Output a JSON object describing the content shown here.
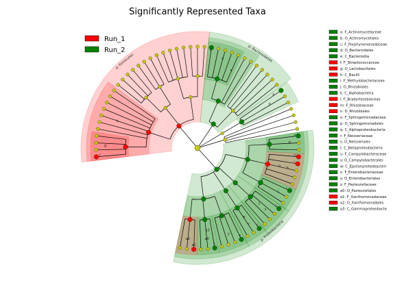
{
  "chart_data": {
    "type": "cladogram",
    "title": "Significantly Represented Taxa",
    "colors": {
      "Run_1": "#ff0000",
      "Run_2": "#008000",
      "neutral_node": "#c8c800",
      "edge": "#000000"
    },
    "legend": [
      {
        "name": "Run_1",
        "color": "#ff0000"
      },
      {
        "name": "Run_2",
        "color": "#008000"
      }
    ],
    "phylum_labels": [
      {
        "label": "p: Firmicutes",
        "group": "Run_1"
      },
      {
        "label": "p: Bacteroidetes",
        "group": "Run_2"
      },
      {
        "label": "p: Proteobacteria",
        "group": "Run_2"
      }
    ],
    "taxa": [
      {
        "letter": "a",
        "name": "F_Actinomycetaceae",
        "group": "Run_2"
      },
      {
        "letter": "b",
        "name": "O_Actinomycetales",
        "group": "Run_2"
      },
      {
        "letter": "c",
        "name": "F_Porphyromonadaceae",
        "group": "Run_2"
      },
      {
        "letter": "d",
        "name": "O_Bacteroidales",
        "group": "Run_2"
      },
      {
        "letter": "e",
        "name": "C_Bacteroidia",
        "group": "Run_2"
      },
      {
        "letter": "f",
        "name": "F_Streptococcaceae",
        "group": "Run_1"
      },
      {
        "letter": "g",
        "name": "O_Lactobacillales",
        "group": "Run_1"
      },
      {
        "letter": "h",
        "name": "C_Bacilli",
        "group": "Run_1"
      },
      {
        "letter": "i",
        "name": "F_Methylobacteriaceae",
        "group": "Run_2"
      },
      {
        "letter": "j",
        "name": "O_Rhizobiales",
        "group": "Run_2"
      },
      {
        "letter": "k",
        "name": "C_Alphabacteria",
        "group": "Run_2"
      },
      {
        "letter": "l",
        "name": "F_Bradyrhizobiaceae",
        "group": "Run_1"
      },
      {
        "letter": "m",
        "name": "F_Rhizobiaceae",
        "group": "Run_1"
      },
      {
        "letter": "n",
        "name": "O_Rhizobiales",
        "group": "Run_1"
      },
      {
        "letter": "o",
        "name": "F_Sphingomonadaceae",
        "group": "Run_2"
      },
      {
        "letter": "p",
        "name": "O_Sphingomonadales",
        "group": "Run_2"
      },
      {
        "letter": "q",
        "name": "C_Alphaproteobacteria",
        "group": "Run_2"
      },
      {
        "letter": "r",
        "name": "F_Neisseriaceae",
        "group": "Run_2"
      },
      {
        "letter": "s",
        "name": "O_Neisseriales",
        "group": "Run_2"
      },
      {
        "letter": "t",
        "name": "C_Betaproteobacteria",
        "group": "Run_2"
      },
      {
        "letter": "u",
        "name": "F_Campylobacteraceae",
        "group": "Run_2"
      },
      {
        "letter": "v",
        "name": "O_Campylobacterales",
        "group": "Run_2"
      },
      {
        "letter": "w",
        "name": "C_Epsilonproteobacteri",
        "group": "Run_2"
      },
      {
        "letter": "x",
        "name": "F_Enterobacteriaceae",
        "group": "Run_2"
      },
      {
        "letter": "y",
        "name": "O_Enterobacteriales",
        "group": "Run_2"
      },
      {
        "letter": "z",
        "name": "F_Pasteurellaceae",
        "group": "Run_2"
      },
      {
        "letter": "a0",
        "name": "O_Pasteurellales",
        "group": "Run_2"
      },
      {
        "letter": "a1",
        "name": "F_Xanthomonadaceae",
        "group": "Run_1"
      },
      {
        "letter": "a2",
        "name": "O_Xanthomonadales",
        "group": "Run_1"
      },
      {
        "letter": "a3",
        "name": "C_Gammaproteobacte",
        "group": "Run_2"
      }
    ]
  }
}
